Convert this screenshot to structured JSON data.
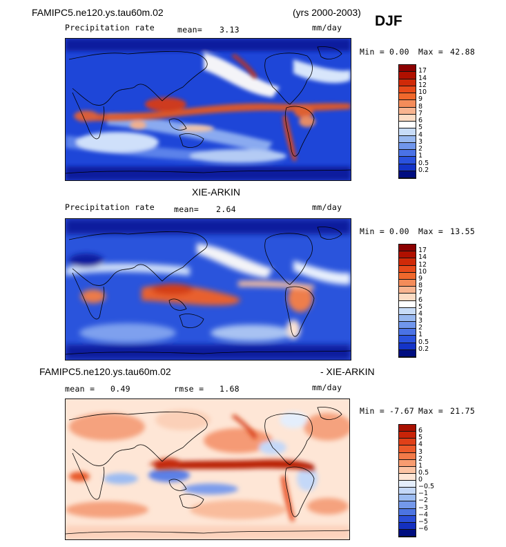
{
  "header": {
    "model": "FAMIPC5.ne120.ys.tau60m.02",
    "years": "(yrs 2000-2003)",
    "season": "DJF"
  },
  "panels": [
    {
      "variable": "Precipitation rate",
      "mean_label": "mean=",
      "mean_value": "3.13",
      "units": "mm/day",
      "min_label": "Min =",
      "min_value": "0.00",
      "max_label": "Max =",
      "max_value": "42.88"
    },
    {
      "title": "XIE-ARKIN",
      "variable": "Precipitation rate",
      "mean_label": "mean=",
      "mean_value": "2.64",
      "units": "mm/day",
      "min_label": "Min =",
      "min_value": "0.00",
      "max_label": "Max =",
      "max_value": "13.55"
    },
    {
      "title_left": "FAMIPC5.ne120.ys.tau60m.02",
      "title_right": "- XIE-ARKIN",
      "mean_label": "mean =",
      "mean_value": "0.49",
      "rmse_label": "rmse =",
      "rmse_value": "1.68",
      "units": "mm/day",
      "min_label": "Min =",
      "min_value": "-7.67",
      "max_label": "Max =",
      "max_value": "21.75"
    }
  ],
  "colorbar_precip": {
    "labels": [
      "17",
      "14",
      "12",
      "10",
      "9",
      "8",
      "7",
      "6",
      "5",
      "4",
      "3",
      "2",
      "1",
      "0.5",
      "0.2"
    ],
    "colors": [
      "#8b0000",
      "#b01000",
      "#d02a08",
      "#e84a1a",
      "#f0682c",
      "#f48c5a",
      "#f8b490",
      "#fcdcc4",
      "#ffffff",
      "#c8dcf8",
      "#98b8f0",
      "#7096ec",
      "#4a72e6",
      "#2a52de",
      "#1434c8",
      "#000e80"
    ]
  },
  "colorbar_diff": {
    "labels": [
      "6",
      "5",
      "4",
      "3",
      "2",
      "1",
      "0.5",
      "0",
      "−0.5",
      "−1",
      "−2",
      "−3",
      "−4",
      "−5",
      "−6"
    ],
    "colors": [
      "#a81000",
      "#c82408",
      "#e04018",
      "#ec5a2a",
      "#f27a48",
      "#f89c70",
      "#fcc4a4",
      "#fee6d6",
      "#e4eefc",
      "#c4d8f8",
      "#9cbcf2",
      "#7498ea",
      "#4c74e2",
      "#2a4ed8",
      "#1430c0",
      "#000e80"
    ]
  }
}
